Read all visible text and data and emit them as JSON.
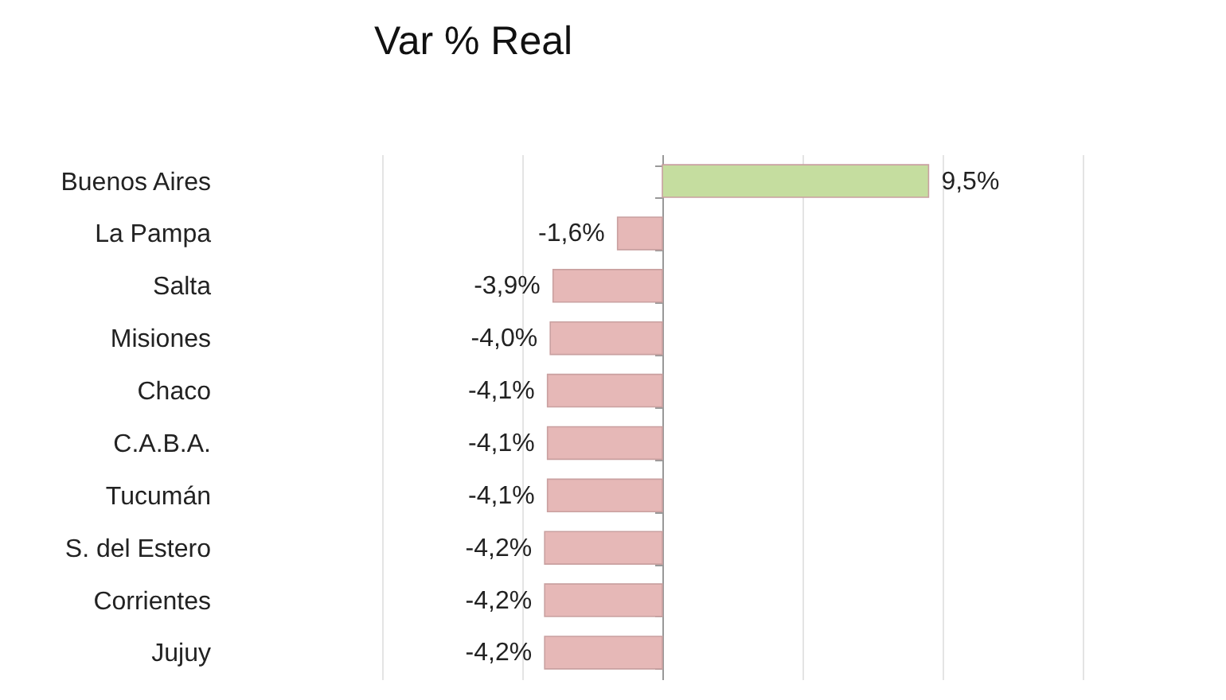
{
  "chart_data": {
    "type": "bar",
    "orientation": "horizontal",
    "title": "Var % Real",
    "categories": [
      "Buenos Aires",
      "La Pampa",
      "Salta",
      "Misiones",
      "Chaco",
      "C.A.B.A.",
      "Tucumán",
      "S. del Estero",
      "Corrientes",
      "Jujuy"
    ],
    "values": [
      9.5,
      -1.6,
      -3.9,
      -4.0,
      -4.1,
      -4.1,
      -4.1,
      -4.2,
      -4.2,
      -4.2
    ],
    "value_labels": [
      "9,5%",
      "-1,6%",
      "-3,9%",
      "-4,0%",
      "-4,1%",
      "-4,1%",
      "-4,1%",
      "-4,2%",
      "-4,2%",
      "-4,2%"
    ],
    "colors": [
      "#c5dd9f",
      "#e6b8b7",
      "#e6b8b7",
      "#e6b8b7",
      "#e6b8b7",
      "#e6b8b7",
      "#e6b8b7",
      "#e6b8b7",
      "#e6b8b7",
      "#e6b8b7"
    ],
    "xlim": [
      -10,
      15
    ],
    "xticks": [
      {
        "value": -10,
        "label": null
      },
      {
        "value": -5,
        "label": null
      },
      {
        "value": 0,
        "label": null
      },
      {
        "value": 5,
        "label": null
      },
      {
        "value": 10,
        "label": null
      },
      {
        "value": 15,
        "label": null
      }
    ],
    "grid": "x",
    "tick_labels": "y"
  }
}
